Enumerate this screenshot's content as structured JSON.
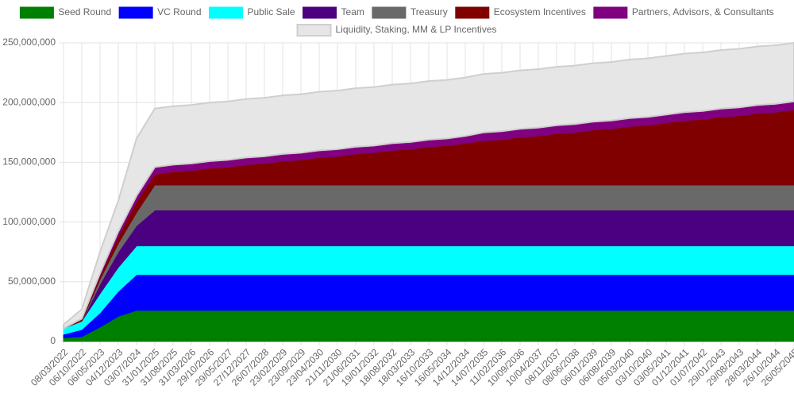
{
  "chart_data": {
    "type": "stacked-area",
    "legend": "top",
    "grid": true,
    "categories": [
      "08/03/2022",
      "06/10/2022",
      "06/05/2023",
      "04/12/2023",
      "03/07/2024",
      "31/01/2025",
      "31/08/2025",
      "31/03/2026",
      "29/10/2026",
      "29/05/2027",
      "27/12/2027",
      "26/07/2028",
      "23/02/2029",
      "23/09/2029",
      "23/04/2030",
      "21/11/2030",
      "21/06/2031",
      "19/01/2032",
      "18/08/2032",
      "18/03/2033",
      "16/10/2033",
      "16/05/2034",
      "14/12/2034",
      "14/07/2035",
      "11/02/2036",
      "10/09/2036",
      "10/04/2037",
      "08/11/2037",
      "08/06/2038",
      "06/01/2039",
      "06/08/2039",
      "05/03/2040",
      "03/10/2040",
      "03/05/2041",
      "01/12/2041",
      "01/07/2042",
      "29/01/2043",
      "29/08/2043",
      "28/03/2044",
      "26/10/2044",
      "26/05/2045"
    ],
    "ylim": [
      0,
      250000000
    ],
    "yticks": [
      0,
      {
        "value": 50000000,
        "label": "50,000,000"
      },
      {
        "value": 100000000,
        "label": "100,000,000"
      },
      {
        "value": 150000000,
        "label": "150,000,000"
      },
      {
        "value": 200000000,
        "label": "200,000,000"
      },
      {
        "value": 250000000,
        "label": "250,000,000"
      }
    ],
    "series": [
      {
        "name": "Seed Round",
        "color": "#008000",
        "values": [
          3000000,
          4000000,
          12000000,
          21000000,
          26000000,
          26000000,
          26000000,
          26000000,
          26000000,
          26000000,
          26000000,
          26000000,
          26000000,
          26000000,
          26000000,
          26000000,
          26000000,
          26000000,
          26000000,
          26000000,
          26000000,
          26000000,
          26000000,
          26000000,
          26000000,
          26000000,
          26000000,
          26000000,
          26000000,
          26000000,
          26000000,
          26000000,
          26000000,
          26000000,
          26000000,
          26000000,
          26000000,
          26000000,
          26000000,
          26000000,
          26000000
        ]
      },
      {
        "name": "VC Round",
        "color": "#0000ff",
        "values": [
          3000000,
          6000000,
          12000000,
          21000000,
          30000000,
          30000000,
          30000000,
          30000000,
          30000000,
          30000000,
          30000000,
          30000000,
          30000000,
          30000000,
          30000000,
          30000000,
          30000000,
          30000000,
          30000000,
          30000000,
          30000000,
          30000000,
          30000000,
          30000000,
          30000000,
          30000000,
          30000000,
          30000000,
          30000000,
          30000000,
          30000000,
          30000000,
          30000000,
          30000000,
          30000000,
          30000000,
          30000000,
          30000000,
          30000000,
          30000000,
          30000000
        ]
      },
      {
        "name": "Public Sale",
        "color": "#00ffff",
        "values": [
          5000000,
          7000000,
          16000000,
          20000000,
          24000000,
          24000000,
          24000000,
          24000000,
          24000000,
          24000000,
          24000000,
          24000000,
          24000000,
          24000000,
          24000000,
          24000000,
          24000000,
          24000000,
          24000000,
          24000000,
          24000000,
          24000000,
          24000000,
          24000000,
          24000000,
          24000000,
          24000000,
          24000000,
          24000000,
          24000000,
          24000000,
          24000000,
          24000000,
          24000000,
          24000000,
          24000000,
          24000000,
          24000000,
          24000000,
          24000000,
          24000000
        ]
      },
      {
        "name": "Team",
        "color": "#4b0082",
        "values": [
          0,
          0,
          8000000,
          13000000,
          17000000,
          30000000,
          30000000,
          30000000,
          30000000,
          30000000,
          30000000,
          30000000,
          30000000,
          30000000,
          30000000,
          30000000,
          30000000,
          30000000,
          30000000,
          30000000,
          30000000,
          30000000,
          30000000,
          30000000,
          30000000,
          30000000,
          30000000,
          30000000,
          30000000,
          30000000,
          30000000,
          30000000,
          30000000,
          30000000,
          30000000,
          30000000,
          30000000,
          30000000,
          30000000,
          30000000,
          30000000
        ]
      },
      {
        "name": "Treasury",
        "color": "#696969",
        "values": [
          0,
          0,
          4000000,
          7000000,
          11000000,
          21000000,
          21000000,
          21000000,
          21000000,
          21000000,
          21000000,
          21000000,
          21000000,
          21000000,
          21000000,
          21000000,
          21000000,
          21000000,
          21000000,
          21000000,
          21000000,
          21000000,
          21000000,
          21000000,
          21000000,
          21000000,
          21000000,
          21000000,
          21000000,
          21000000,
          21000000,
          21000000,
          21000000,
          21000000,
          21000000,
          21000000,
          21000000,
          21000000,
          21000000,
          21000000,
          21000000
        ]
      },
      {
        "name": "Ecosystem Incentives",
        "color": "#800000",
        "values": [
          0,
          2000000,
          3000000,
          6000000,
          9000000,
          9000000,
          11000000,
          12000000,
          14000000,
          15000000,
          17000000,
          18000000,
          20000000,
          21000000,
          23000000,
          24000000,
          26000000,
          27000000,
          29000000,
          30000000,
          32000000,
          33000000,
          35000000,
          37000000,
          38000000,
          40000000,
          41000000,
          43000000,
          44000000,
          46000000,
          47000000,
          49000000,
          50000000,
          52000000,
          54000000,
          55000000,
          57000000,
          58000000,
          60000000,
          61000000,
          63000000
        ]
      },
      {
        "name": "Partners, Advisors, & Consultants",
        "color": "#800080",
        "values": [
          0,
          0,
          2000000,
          4000000,
          5000000,
          6000000,
          6000000,
          6000000,
          6000000,
          6000000,
          6000000,
          6000000,
          6000000,
          6000000,
          6000000,
          6000000,
          6000000,
          6000000,
          6000000,
          6000000,
          6000000,
          6000000,
          6000000,
          7000000,
          7000000,
          7000000,
          7000000,
          7000000,
          7000000,
          7000000,
          7000000,
          7000000,
          7000000,
          7000000,
          7000000,
          7000000,
          7000000,
          7000000,
          7000000,
          7000000,
          7000000
        ]
      },
      {
        "name": "Liquidity, Staking, MM & LP Incentives",
        "color": "#e6e6e6",
        "values": [
          3000000,
          8000000,
          18000000,
          26000000,
          48000000,
          49000000,
          49000000,
          49000000,
          49000000,
          49000000,
          49000000,
          49000000,
          49000000,
          49000000,
          49000000,
          49000000,
          49000000,
          49000000,
          49000000,
          49000000,
          49000000,
          49000000,
          49000000,
          49000000,
          49000000,
          49000000,
          49000000,
          49000000,
          49000000,
          49000000,
          49000000,
          49000000,
          49000000,
          49000000,
          49000000,
          49000000,
          49000000,
          49000000,
          49000000,
          49000000,
          49000000
        ]
      }
    ]
  }
}
